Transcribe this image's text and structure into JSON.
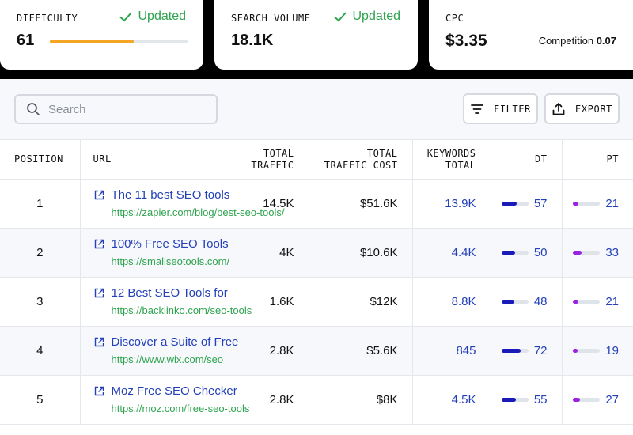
{
  "stats": {
    "difficulty": {
      "label": "DIFFICULTY",
      "status": "Updated",
      "value": "61",
      "level": 0.61
    },
    "search_volume": {
      "label": "SEARCH VOLUME",
      "status": "Updated",
      "value": "18.1K"
    },
    "cpc": {
      "label": "CPC",
      "value": "$3.35",
      "competition_label": "Competition",
      "competition_value": "0.07"
    }
  },
  "colors": {
    "status_green": "#2ea44f",
    "difficulty_bar": "#f5a524",
    "link_blue": "#2340b8",
    "dt_bar": "#1a1ab8",
    "pt_bar": "#9b22e0"
  },
  "toolbar": {
    "search_placeholder": "Search",
    "filter_label": "FILTER",
    "export_label": "EXPORT"
  },
  "table": {
    "headers": {
      "position": "POSITION",
      "url": "URL",
      "total_traffic_1": "TOTAL",
      "total_traffic_2": "TRAFFIC",
      "traffic_cost_1": "TOTAL",
      "traffic_cost_2": "TRAFFIC COST",
      "keywords_1": "KEYWORDS",
      "keywords_2": "TOTAL",
      "dt": "DT",
      "pt": "PT"
    },
    "rows": [
      {
        "position": "1",
        "title": "The 11 best SEO tools",
        "url": "https://zapier.com/blog/best-seo-tools/",
        "traffic": "14.5K",
        "cost": "$51.6K",
        "keywords": "13.9K",
        "dt": 57,
        "pt": 21
      },
      {
        "position": "2",
        "title": "100% Free SEO Tools",
        "url": "https://smallseotools.com/",
        "traffic": "4K",
        "cost": "$10.6K",
        "keywords": "4.4K",
        "dt": 50,
        "pt": 33
      },
      {
        "position": "3",
        "title": "12 Best SEO Tools for",
        "url": "https://backlinko.com/seo-tools",
        "traffic": "1.6K",
        "cost": "$12K",
        "keywords": "8.8K",
        "dt": 48,
        "pt": 21
      },
      {
        "position": "4",
        "title": "Discover a Suite of Free",
        "url": "https://www.wix.com/seo",
        "traffic": "2.8K",
        "cost": "$5.6K",
        "keywords": "845",
        "dt": 72,
        "pt": 19
      },
      {
        "position": "5",
        "title": "Moz Free SEO Checker",
        "url": "https://moz.com/free-seo-tools",
        "traffic": "2.8K",
        "cost": "$8K",
        "keywords": "4.5K",
        "dt": 55,
        "pt": 27
      }
    ]
  }
}
